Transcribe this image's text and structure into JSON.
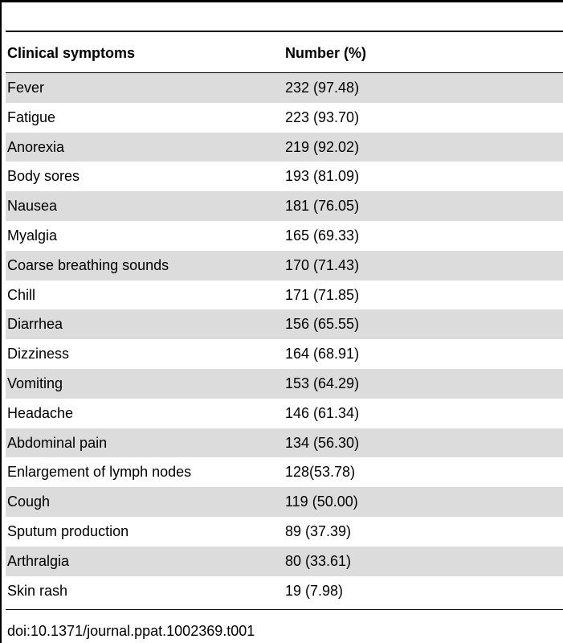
{
  "table": {
    "headers": [
      "Clinical symptoms",
      "Number (%)"
    ],
    "rows": [
      [
        "Fever",
        "232 (97.48)"
      ],
      [
        "Fatigue",
        "223 (93.70)"
      ],
      [
        "Anorexia",
        "219 (92.02)"
      ],
      [
        "Body sores",
        "193 (81.09)"
      ],
      [
        "Nausea",
        "181 (76.05)"
      ],
      [
        "Myalgia",
        "165 (69.33)"
      ],
      [
        "Coarse breathing sounds",
        "170 (71.43)"
      ],
      [
        "Chill",
        "171 (71.85)"
      ],
      [
        "Diarrhea",
        "156 (65.55)"
      ],
      [
        "Dizziness",
        "164 (68.91)"
      ],
      [
        "Vomiting",
        "153 (64.29)"
      ],
      [
        "Headache",
        "146 (61.34)"
      ],
      [
        "Abdominal pain",
        "134 (56.30)"
      ],
      [
        "Enlargement of lymph nodes",
        "128(53.78)"
      ],
      [
        "Cough",
        "119 (50.00)"
      ],
      [
        "Sputum production",
        "89 (37.39)"
      ],
      [
        "Arthralgia",
        "80 (33.61)"
      ],
      [
        "Skin rash",
        "19 (7.98)"
      ]
    ]
  },
  "footer": {
    "doi": "doi:10.1371/journal.ppat.1002369.t001"
  },
  "colors": {
    "row_shade": "#dcdcdc",
    "rule": "#000000"
  }
}
